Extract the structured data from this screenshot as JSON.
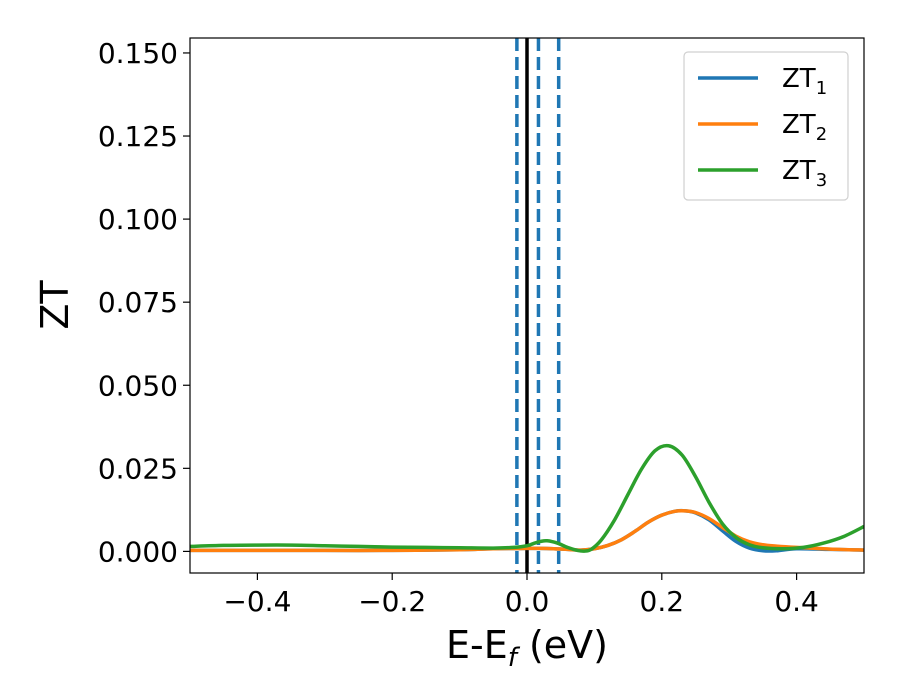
{
  "chart_data": {
    "type": "line",
    "title": "",
    "xlabel": {
      "main": "E-E",
      "sub": "f",
      "suffix": " (eV)"
    },
    "ylabel": "ZT",
    "xlim": [
      -0.5,
      0.5
    ],
    "ylim": [
      -0.0065,
      0.1545
    ],
    "x_ticks": [
      -0.4,
      -0.2,
      0.0,
      0.2,
      0.4
    ],
    "x_tick_labels": [
      "−0.4",
      "−0.2",
      "0.0",
      "0.2",
      "0.4"
    ],
    "y_ticks": [
      0.0,
      0.025,
      0.05,
      0.075,
      0.1,
      0.125,
      0.15
    ],
    "y_tick_labels": [
      "0.000",
      "0.025",
      "0.050",
      "0.075",
      "0.100",
      "0.125",
      "0.150"
    ],
    "grid": false,
    "legend_position": "top-right",
    "vertical_lines": [
      {
        "x": 0.0,
        "style": "solid",
        "color": "#000000"
      },
      {
        "x": -0.015,
        "style": "dashed",
        "color": "#1f77b4"
      },
      {
        "x": 0.017,
        "style": "dashed",
        "color": "#1f77b4"
      },
      {
        "x": 0.047,
        "style": "dashed",
        "color": "#1f77b4"
      }
    ],
    "series": [
      {
        "name": "ZT",
        "sub": "1",
        "color": "#1f77b4",
        "x": [
          -0.5,
          -0.4,
          -0.3,
          -0.2,
          -0.1,
          -0.05,
          0.0,
          0.02,
          0.04,
          0.06,
          0.08,
          0.1,
          0.12,
          0.14,
          0.16,
          0.18,
          0.2,
          0.22,
          0.235,
          0.25,
          0.27,
          0.29,
          0.31,
          0.33,
          0.35,
          0.37,
          0.4,
          0.45,
          0.5
        ],
        "y": [
          0.0003,
          0.0003,
          0.0003,
          0.0003,
          0.0005,
          0.0008,
          0.0009,
          0.0009,
          0.0008,
          0.0006,
          0.0004,
          0.0008,
          0.0018,
          0.0035,
          0.006,
          0.0088,
          0.0109,
          0.0121,
          0.0122,
          0.0116,
          0.0095,
          0.0062,
          0.003,
          0.001,
          0.0002,
          0.0002,
          0.0008,
          0.0006,
          0.0004
        ]
      },
      {
        "name": "ZT",
        "sub": "2",
        "color": "#ff7f0e",
        "x": [
          -0.5,
          -0.4,
          -0.3,
          -0.2,
          -0.1,
          -0.05,
          0.0,
          0.02,
          0.04,
          0.06,
          0.08,
          0.1,
          0.12,
          0.14,
          0.16,
          0.18,
          0.2,
          0.22,
          0.235,
          0.25,
          0.27,
          0.29,
          0.31,
          0.33,
          0.35,
          0.37,
          0.4,
          0.45,
          0.5
        ],
        "y": [
          0.0003,
          0.0003,
          0.0003,
          0.0003,
          0.0005,
          0.0008,
          0.0009,
          0.0009,
          0.0008,
          0.0006,
          0.0004,
          0.0008,
          0.0018,
          0.0035,
          0.006,
          0.0088,
          0.0109,
          0.0121,
          0.0122,
          0.0117,
          0.0099,
          0.0072,
          0.0046,
          0.0029,
          0.002,
          0.0016,
          0.0012,
          0.0007,
          0.0004
        ]
      },
      {
        "name": "ZT",
        "sub": "3",
        "color": "#2ca02c",
        "x": [
          -0.5,
          -0.45,
          -0.4,
          -0.35,
          -0.3,
          -0.25,
          -0.2,
          -0.15,
          -0.1,
          -0.05,
          -0.02,
          0.0,
          0.01,
          0.02,
          0.03,
          0.045,
          0.06,
          0.075,
          0.085,
          0.095,
          0.11,
          0.13,
          0.15,
          0.17,
          0.19,
          0.21,
          0.23,
          0.25,
          0.27,
          0.29,
          0.31,
          0.33,
          0.35,
          0.38,
          0.41,
          0.44,
          0.47,
          0.5
        ],
        "y": [
          0.0015,
          0.0018,
          0.0019,
          0.0019,
          0.0017,
          0.0015,
          0.0013,
          0.0012,
          0.0011,
          0.001,
          0.0012,
          0.0017,
          0.0024,
          0.003,
          0.0032,
          0.0025,
          0.0012,
          0.0003,
          0.0001,
          0.0006,
          0.0034,
          0.0095,
          0.0172,
          0.0248,
          0.0303,
          0.0318,
          0.029,
          0.0225,
          0.0148,
          0.0083,
          0.0042,
          0.002,
          0.0011,
          0.0008,
          0.0012,
          0.0025,
          0.0045,
          0.0075
        ]
      }
    ]
  }
}
